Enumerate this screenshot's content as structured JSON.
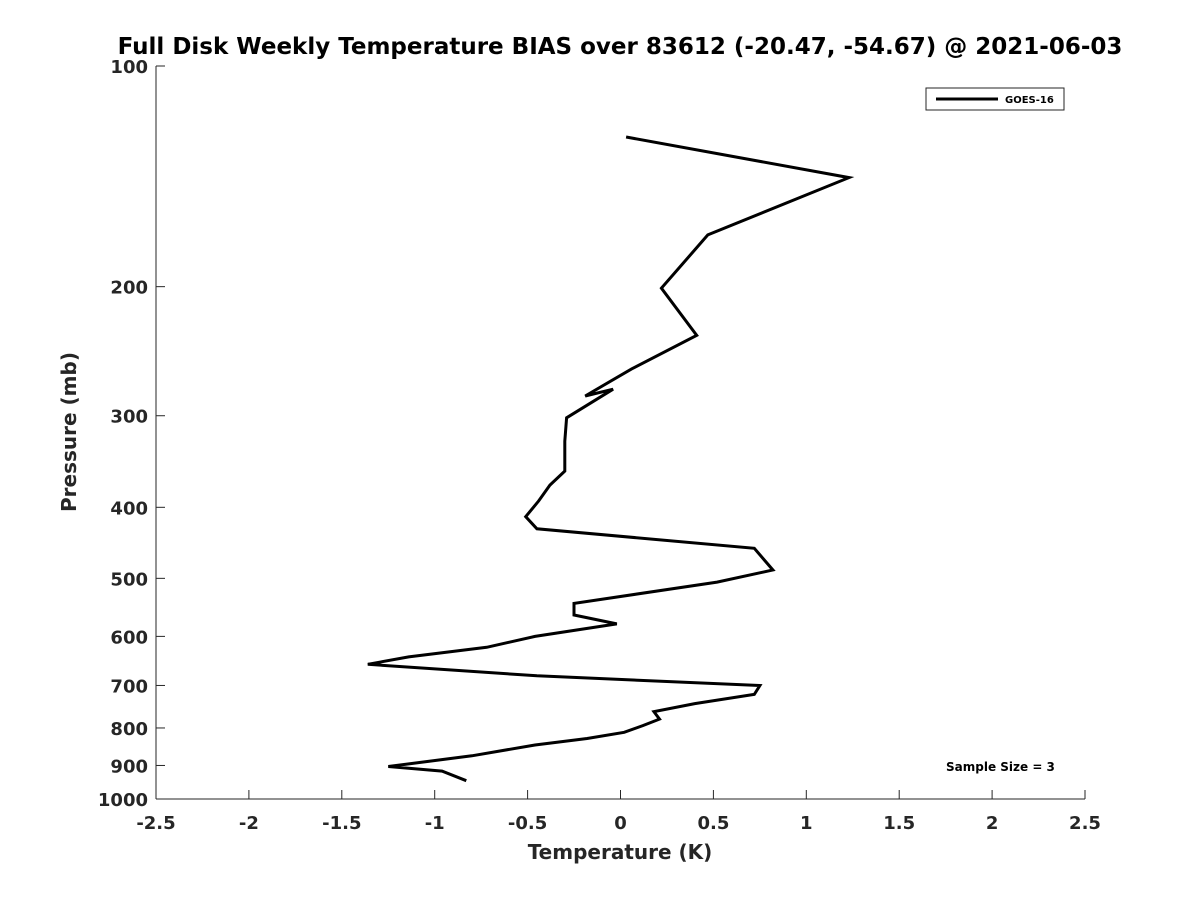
{
  "chart_data": {
    "type": "line",
    "title": "Full Disk Weekly Temperature BIAS over 83612 (-20.47, -54.67) @ 2021-06-03",
    "xlabel": "Temperature (K)",
    "ylabel": "Pressure (mb)",
    "xlim": [
      -2.5,
      2.5
    ],
    "ylim": [
      100,
      1000
    ],
    "yscale": "log",
    "yreversed": true,
    "grid": false,
    "x_ticks": [
      -2.5,
      -2,
      -1.5,
      -1,
      -0.5,
      0,
      0.5,
      1,
      1.5,
      2,
      2.5
    ],
    "x_tick_labels": [
      "-2.5",
      "-2",
      "-1.5",
      "-1",
      "-0.5",
      "0",
      "0.5",
      "1",
      "1.5",
      "2",
      "2.5"
    ],
    "y_ticks": [
      100,
      200,
      300,
      400,
      500,
      600,
      700,
      800,
      900,
      1000
    ],
    "y_tick_labels": [
      "100",
      "200",
      "300",
      "400",
      "500",
      "600",
      "700",
      "800",
      "900",
      "1000"
    ],
    "legend": {
      "position": "top-right",
      "entries": [
        "GOES-16"
      ]
    },
    "annotation": "Sample Size = 3",
    "series": [
      {
        "name": "GOES-16",
        "color": "#000000",
        "temperature": [
          0.03,
          1.23,
          0.47,
          0.22,
          0.41,
          0.06,
          -0.19,
          -0.04,
          -0.29,
          -0.3,
          -0.3,
          -0.38,
          -0.44,
          -0.51,
          -0.45,
          0.72,
          0.82,
          0.52,
          -0.25,
          -0.25,
          -0.02,
          -0.46,
          -0.72,
          -1.14,
          -1.36,
          -0.45,
          0.75,
          0.72,
          0.4,
          0.18,
          0.21,
          0.12,
          0.02,
          -0.18,
          -0.46,
          -0.8,
          -1.25,
          -0.96,
          -0.83
        ],
        "pressure": [
          125,
          142,
          170,
          201,
          233,
          259,
          282,
          276,
          302,
          325,
          357,
          373,
          392,
          412,
          428,
          455,
          487,
          506,
          541,
          561,
          577,
          600,
          621,
          640,
          655,
          679,
          700,
          720,
          741,
          760,
          778,
          794,
          811,
          827,
          844,
          873,
          903,
          916,
          944
        ]
      }
    ]
  }
}
